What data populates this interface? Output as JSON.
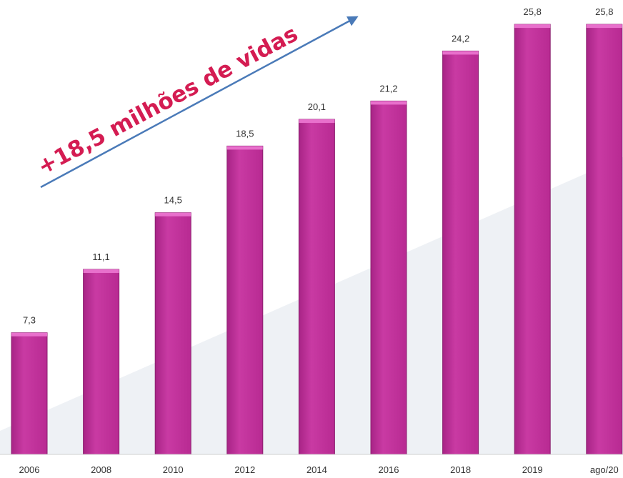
{
  "chart_data": {
    "type": "bar",
    "categories": [
      "2006",
      "2008",
      "2010",
      "2012",
      "2014",
      "2016",
      "2018",
      "2019",
      "ago/20"
    ],
    "values": [
      7.3,
      11.1,
      14.5,
      18.5,
      20.1,
      21.2,
      24.2,
      25.8,
      25.8
    ],
    "value_labels": [
      "7,3",
      "11,1",
      "14,5",
      "18,5",
      "20,1",
      "21,2",
      "24,2",
      "25,8",
      "25,8"
    ],
    "title": "",
    "xlabel": "",
    "ylabel": "",
    "ylim": [
      0,
      27
    ],
    "grid": false,
    "legend": "none",
    "annotation": {
      "text": "+18,5 milhões de vidas",
      "arrow": true
    },
    "colors": {
      "bar": "#c0309a",
      "bar_top": "#e870cc",
      "bar_edge": "#8a1f6e",
      "annotation_text": "#d41c52",
      "arrow": "#4a7ab8",
      "background_wedge": "#eef1f5",
      "axis": "#d0d0d0"
    }
  }
}
